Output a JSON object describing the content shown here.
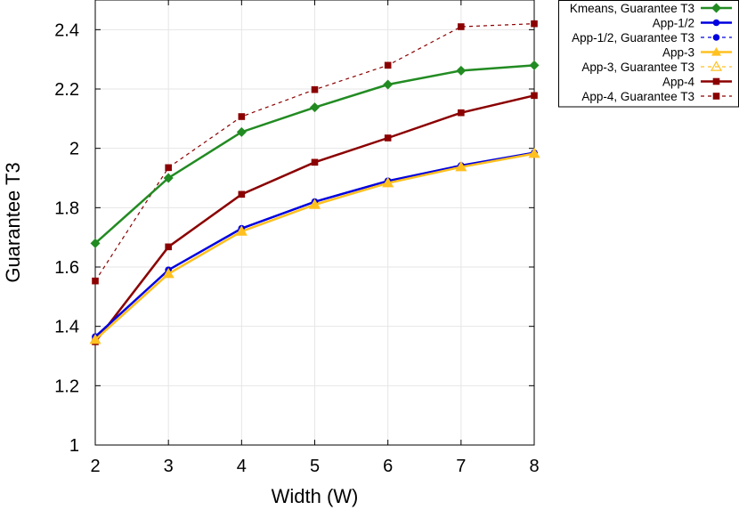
{
  "chart_data": {
    "type": "line",
    "xlabel": "Width (W)",
    "ylabel": "Guarantee T3",
    "xlim": [
      2,
      8
    ],
    "ylim": [
      1,
      2.5
    ],
    "xticks": [
      "2",
      "3",
      "4",
      "5",
      "6",
      "7",
      "8"
    ],
    "yticks": [
      "1",
      "1.2",
      "1.4",
      "1.6",
      "1.8",
      "2",
      "2.2",
      "2.4"
    ],
    "grid": true,
    "legend_position": "top-right, outside plot",
    "x": [
      2,
      3,
      4,
      5,
      6,
      7,
      8
    ],
    "series": [
      {
        "name": "Kmeans, Guarantee T3",
        "color": "#228b22",
        "dash": "solid",
        "marker": "diamond",
        "values": [
          1.68,
          1.9,
          2.055,
          2.138,
          2.215,
          2.262,
          2.28
        ]
      },
      {
        "name": "App-1/2",
        "color": "#0000e0",
        "dash": "solid",
        "marker": "circle",
        "values": [
          1.365,
          1.59,
          1.73,
          1.82,
          1.89,
          1.942,
          1.985
        ]
      },
      {
        "name": "App-1/2, Guarantee T3",
        "color": "#0000e0",
        "dash": "dashed",
        "marker": "circle",
        "values": [
          1.365,
          1.59,
          1.73,
          1.82,
          1.89,
          1.942,
          1.985
        ]
      },
      {
        "name": "App-3",
        "color": "#ffc020",
        "dash": "solid",
        "marker": "triangle",
        "values": [
          1.355,
          1.577,
          1.72,
          1.81,
          1.883,
          1.937,
          1.982
        ]
      },
      {
        "name": "App-3, Guarantee T3",
        "color": "#ffc020",
        "dash": "dashed",
        "marker": "triangle-open",
        "values": [
          1.355,
          1.577,
          1.72,
          1.81,
          1.883,
          1.937,
          1.982
        ]
      },
      {
        "name": "App-4",
        "color": "#8b0000",
        "dash": "solid",
        "marker": "square",
        "values": [
          1.348,
          1.668,
          1.845,
          1.953,
          2.035,
          2.12,
          2.178
        ]
      },
      {
        "name": "App-4, Guarantee T3",
        "color": "#8b0000",
        "dash": "dashed",
        "marker": "square",
        "values": [
          1.553,
          1.935,
          2.107,
          2.198,
          2.28,
          2.41,
          2.42
        ]
      }
    ]
  }
}
